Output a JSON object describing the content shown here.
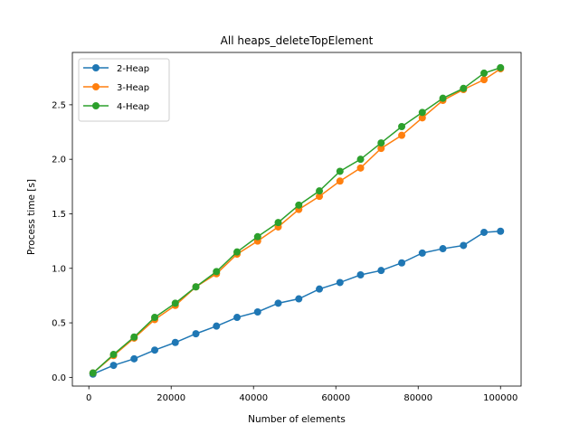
{
  "chart_data": {
    "type": "line",
    "title": "All heaps_deleteTopElement",
    "xlabel": "Number of elements",
    "ylabel": "Process time [s]",
    "xlim": [
      -4000,
      105000
    ],
    "ylim": [
      -0.08,
      2.98
    ],
    "xticks": [
      0,
      20000,
      40000,
      60000,
      80000,
      100000
    ],
    "xtick_labels": [
      "0",
      "20000",
      "40000",
      "60000",
      "80000",
      "100000"
    ],
    "yticks": [
      0.0,
      0.5,
      1.0,
      1.5,
      2.0,
      2.5
    ],
    "ytick_labels": [
      "0.0",
      "0.5",
      "1.0",
      "1.5",
      "2.0",
      "2.5"
    ],
    "grid": false,
    "legend_position": "top-left",
    "x": [
      1000,
      6000,
      11000,
      16000,
      21000,
      26000,
      31000,
      36000,
      41000,
      46000,
      51000,
      56000,
      61000,
      66000,
      71000,
      76000,
      81000,
      86000,
      91000,
      96000,
      100000
    ],
    "series": [
      {
        "name": "2-Heap",
        "color": "#1f77b4",
        "values": [
          0.03,
          0.11,
          0.17,
          0.25,
          0.32,
          0.4,
          0.47,
          0.55,
          0.6,
          0.68,
          0.72,
          0.81,
          0.87,
          0.94,
          0.98,
          1.05,
          1.14,
          1.18,
          1.21,
          1.33,
          1.34
        ]
      },
      {
        "name": "3-Heap",
        "color": "#ff7f0e",
        "values": [
          0.04,
          0.2,
          0.36,
          0.53,
          0.66,
          0.83,
          0.95,
          1.13,
          1.25,
          1.38,
          1.54,
          1.66,
          1.8,
          1.92,
          2.1,
          2.22,
          2.38,
          2.54,
          2.64,
          2.73,
          2.83
        ]
      },
      {
        "name": "4-Heap",
        "color": "#2ca02c",
        "values": [
          0.04,
          0.21,
          0.37,
          0.55,
          0.68,
          0.83,
          0.97,
          1.15,
          1.29,
          1.42,
          1.58,
          1.71,
          1.89,
          2.0,
          2.15,
          2.3,
          2.43,
          2.56,
          2.65,
          2.79,
          2.84
        ]
      }
    ]
  }
}
